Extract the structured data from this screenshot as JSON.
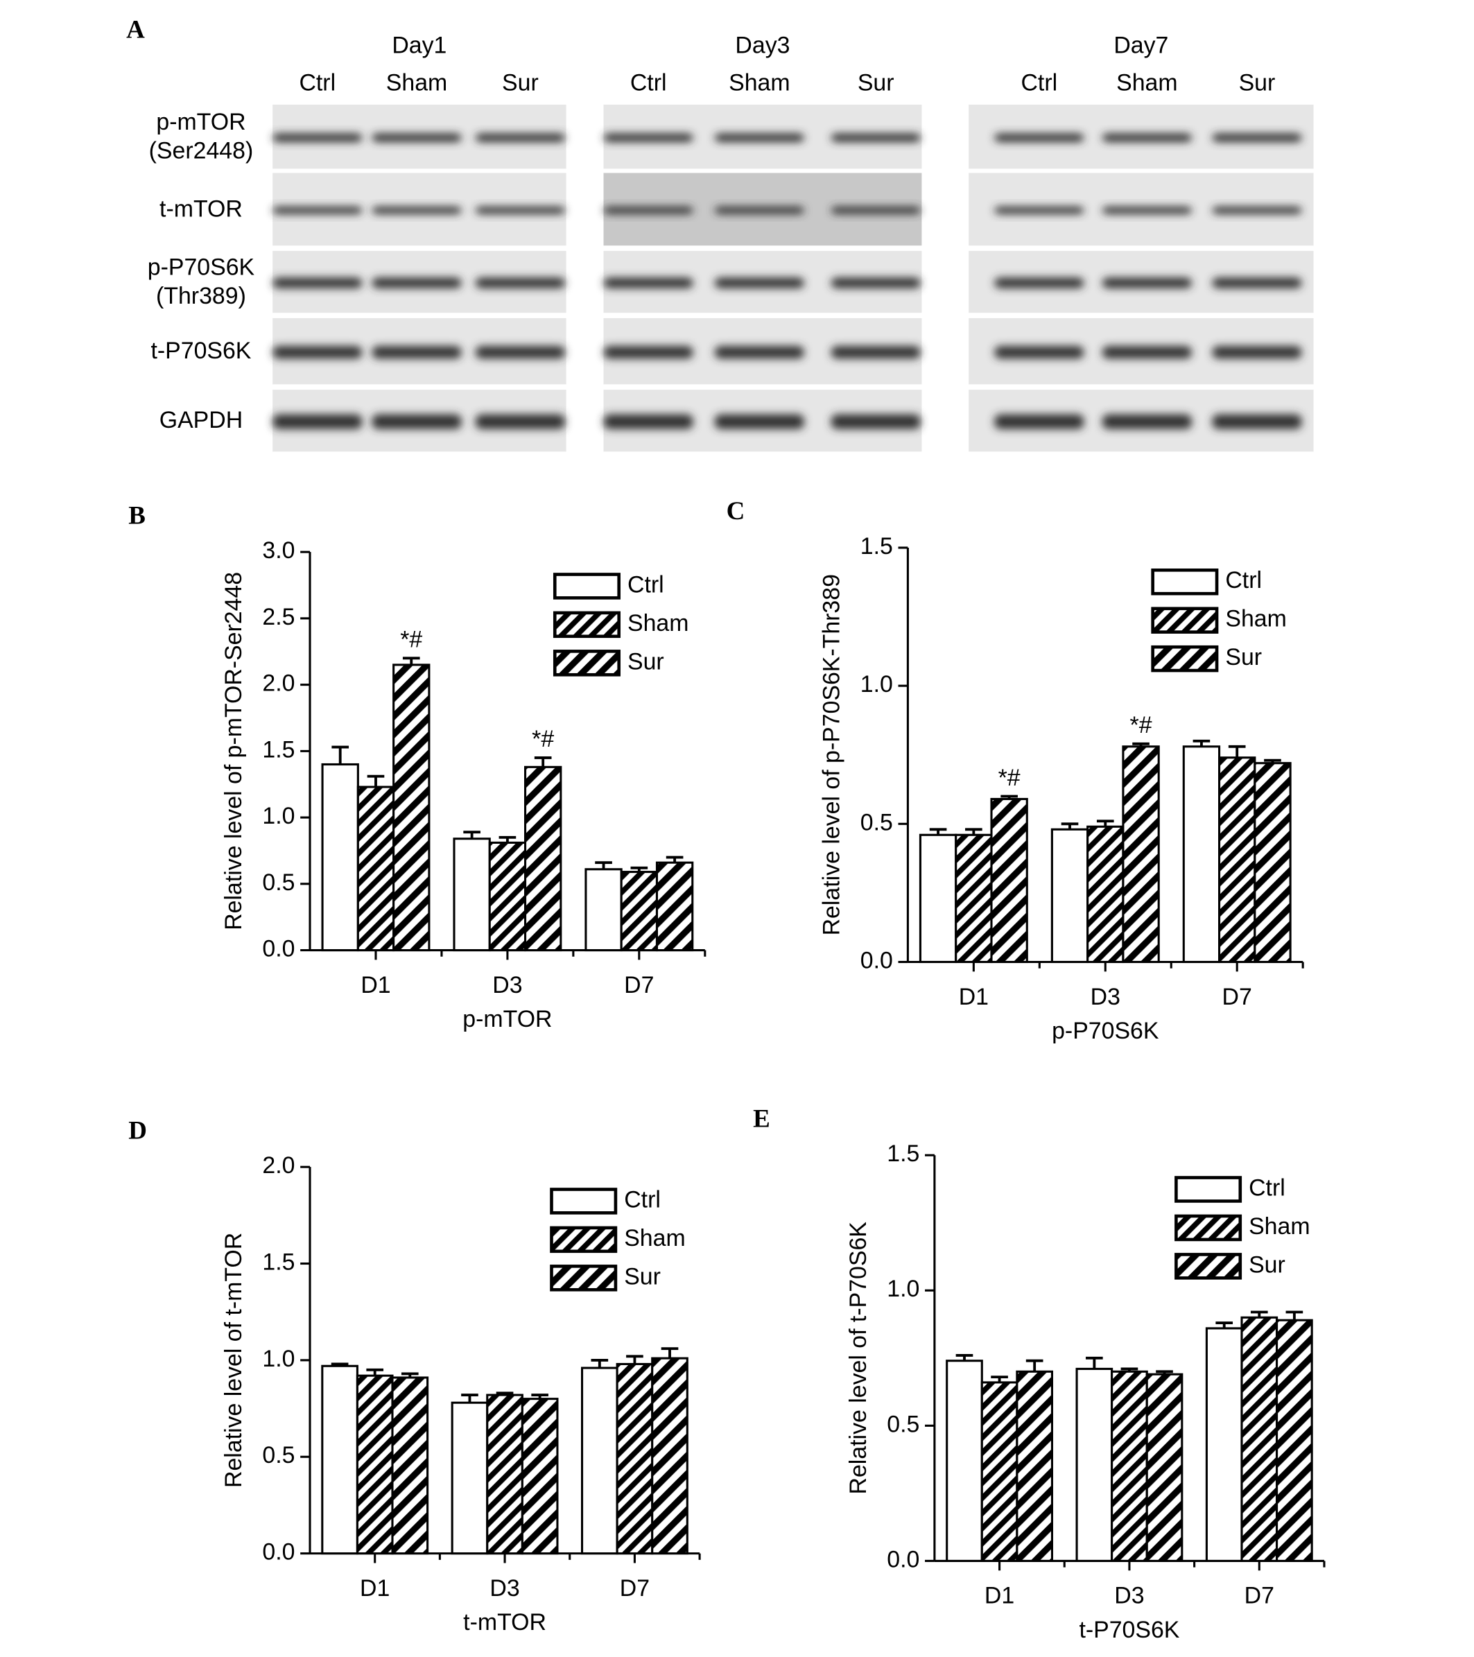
{
  "blot": {
    "panel_label": "A",
    "days": [
      {
        "name": "Day1",
        "lanes": [
          "Ctrl",
          "Sham",
          "Sur"
        ]
      },
      {
        "name": "Day3",
        "lanes": [
          "Ctrl",
          "Sham",
          "Sur"
        ]
      },
      {
        "name": "Day7",
        "lanes": [
          "Ctrl",
          "Sham",
          "Sur"
        ]
      }
    ],
    "proteins": [
      [
        "p-mTOR",
        "(Ser2448)"
      ],
      [
        "t-mTOR"
      ],
      [
        "p-P70S6K",
        "(Thr389)"
      ],
      [
        "t-P70S6K"
      ],
      [
        "GAPDH"
      ]
    ]
  },
  "chart_data": [
    {
      "type": "bar",
      "panel_label": "B",
      "x_label": "p-mTOR",
      "y_label": "Relative level of p-mTOR-Ser2448",
      "categories": [
        "D1",
        "D3",
        "D7"
      ],
      "ylim": [
        0,
        3
      ],
      "yticks": [
        {
          "value": 0,
          "label": "0.0"
        },
        0.5,
        {
          "value": 1,
          "label": "1.0"
        },
        1.5,
        {
          "value": 2,
          "label": "2.0"
        },
        2.5,
        {
          "value": 3,
          "label": "3.0"
        }
      ],
      "legend": "upper right",
      "series": [
        {
          "name": "Ctrl",
          "color": "#000000",
          "pattern": "none",
          "values": [
            1.4,
            0.84,
            0.61
          ],
          "errors": [
            0.13,
            0.05,
            0.05
          ]
        },
        {
          "name": "Sham",
          "color": "#000000",
          "pattern": "hatch-dense",
          "values": [
            1.23,
            0.81,
            0.59
          ],
          "errors": [
            0.08,
            0.04,
            0.03
          ]
        },
        {
          "name": "Sur",
          "color": "#000000",
          "pattern": "hatch",
          "values": [
            2.15,
            1.38,
            0.66
          ],
          "errors": [
            0.05,
            0.07,
            0.04
          ],
          "annotations": [
            "*#",
            "*#",
            null
          ]
        }
      ]
    },
    {
      "type": "bar",
      "panel_label": "C",
      "x_label": "p-P70S6K",
      "y_label": "Relative level of p-P70S6K-Thr389",
      "categories": [
        "D1",
        "D3",
        "D7"
      ],
      "ylim": [
        0,
        1.5
      ],
      "yticks": [
        {
          "value": 0,
          "label": "0.0"
        },
        0.5,
        {
          "value": 1,
          "label": "1.0"
        },
        1.5
      ],
      "legend": "upper right",
      "series": [
        {
          "name": "Ctrl",
          "color": "#000000",
          "pattern": "none",
          "values": [
            0.46,
            0.48,
            0.78
          ],
          "errors": [
            0.02,
            0.02,
            0.02
          ]
        },
        {
          "name": "Sham",
          "color": "#000000",
          "pattern": "hatch-dense",
          "values": [
            0.46,
            0.49,
            0.74
          ],
          "errors": [
            0.02,
            0.02,
            0.04
          ]
        },
        {
          "name": "Sur",
          "color": "#000000",
          "pattern": "hatch",
          "values": [
            0.59,
            0.78,
            0.72
          ],
          "errors": [
            0.01,
            0.01,
            0.01
          ],
          "annotations": [
            "*#",
            "*#",
            null
          ]
        }
      ]
    },
    {
      "type": "bar",
      "panel_label": "D",
      "x_label": "t-mTOR",
      "y_label": "Relative level of t-mTOR",
      "categories": [
        "D1",
        "D3",
        "D7"
      ],
      "ylim": [
        0,
        2
      ],
      "yticks": [
        {
          "value": 0,
          "label": "0.0"
        },
        0.5,
        {
          "value": 1,
          "label": "1.0"
        },
        1.5,
        {
          "value": 2,
          "label": "2.0"
        }
      ],
      "legend": "upper right",
      "series": [
        {
          "name": "Ctrl",
          "color": "#000000",
          "pattern": "none",
          "values": [
            0.97,
            0.78,
            0.96
          ],
          "errors": [
            0.01,
            0.04,
            0.04
          ]
        },
        {
          "name": "Sham",
          "color": "#000000",
          "pattern": "hatch-dense",
          "values": [
            0.92,
            0.82,
            0.98
          ],
          "errors": [
            0.03,
            0.01,
            0.04
          ]
        },
        {
          "name": "Sur",
          "color": "#000000",
          "pattern": "hatch",
          "values": [
            0.91,
            0.8,
            1.01
          ],
          "errors": [
            0.02,
            0.02,
            0.05
          ]
        }
      ]
    },
    {
      "type": "bar",
      "panel_label": "E",
      "x_label": "t-P70S6K",
      "y_label": "Relative level of t-P70S6K",
      "categories": [
        "D1",
        "D3",
        "D7"
      ],
      "ylim": [
        0,
        1.5
      ],
      "yticks": [
        {
          "value": 0,
          "label": "0.0"
        },
        0.5,
        {
          "value": 1,
          "label": "1.0"
        },
        1.5
      ],
      "legend": "upper right",
      "series": [
        {
          "name": "Ctrl",
          "color": "#000000",
          "pattern": "none",
          "values": [
            0.74,
            0.71,
            0.86
          ],
          "errors": [
            0.02,
            0.04,
            0.02
          ]
        },
        {
          "name": "Sham",
          "color": "#000000",
          "pattern": "hatch-dense",
          "values": [
            0.66,
            0.7,
            0.9
          ],
          "errors": [
            0.02,
            0.01,
            0.02
          ]
        },
        {
          "name": "Sur",
          "color": "#000000",
          "pattern": "hatch",
          "values": [
            0.7,
            0.69,
            0.89
          ],
          "errors": [
            0.04,
            0.01,
            0.03
          ]
        }
      ]
    }
  ]
}
